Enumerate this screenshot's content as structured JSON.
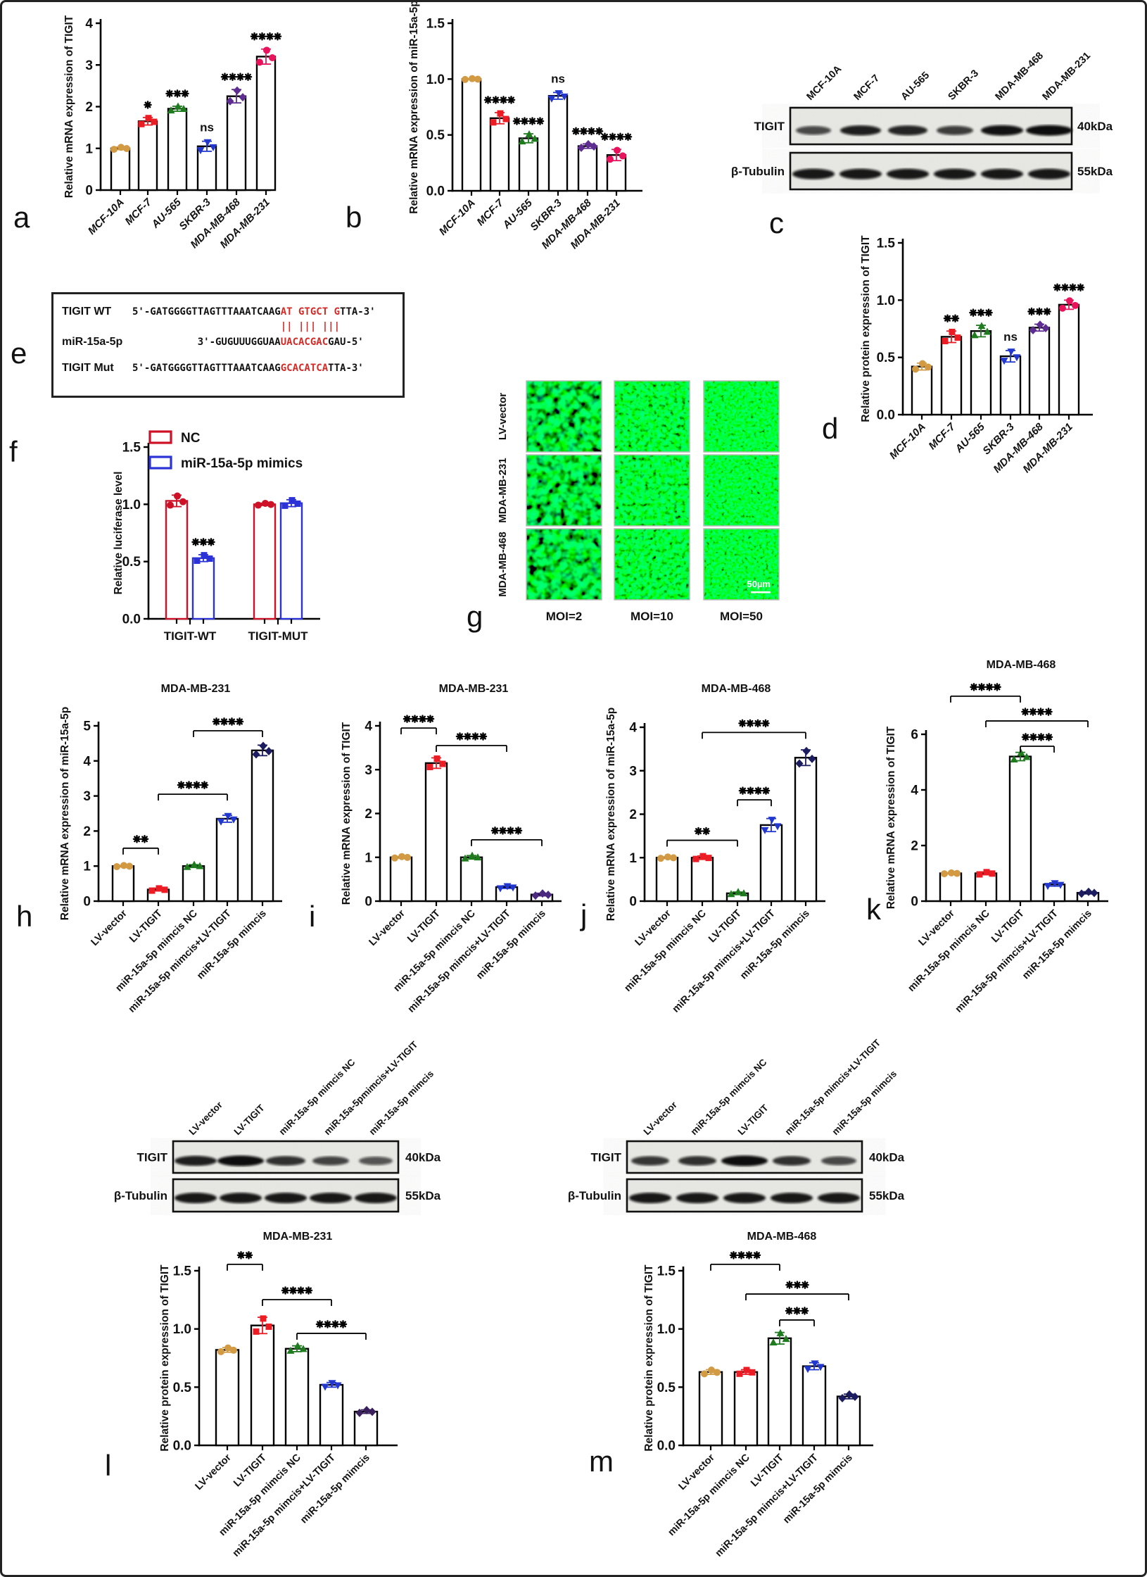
{
  "panel_letters": {
    "a": "a",
    "b": "b",
    "c": "c",
    "d": "d",
    "e": "e",
    "f": "f",
    "g": "g",
    "h": "h",
    "i": "i",
    "j": "j",
    "k": "k",
    "l": "l",
    "m": "m"
  },
  "colors": {
    "orange": "#D29A43",
    "red": "#EC1C24",
    "green": "#1E7B1E",
    "blue": "#2137CE",
    "purple": "#5E2D91",
    "navy": "#1C1C60",
    "crimson": "#E8135C",
    "violet": "#4B2981",
    "darkpurple": "#3A1F5D",
    "legend_red": "#CE1126",
    "legend_blue": "#2B32D6",
    "seq_red": "#D42B27"
  },
  "charts": {
    "a": {
      "type": "bar",
      "ylabel": "Relative mRNA expression of TIGIT",
      "ymax": 4,
      "yticks": [
        {
          "v": 0,
          "t": "0"
        },
        {
          "v": 1,
          "t": "1"
        },
        {
          "v": 2,
          "t": "2"
        },
        {
          "v": 3,
          "t": "3"
        },
        {
          "v": 4,
          "t": "4"
        }
      ],
      "categories": [
        "MCF-10A",
        "MCF-7",
        "AU-565",
        "SKBR-3",
        "MDA-MB-468",
        "MDA-MB-231"
      ],
      "values": [
        1.0,
        1.65,
        1.95,
        1.05,
        2.25,
        3.2
      ],
      "errors": [
        0.03,
        0.09,
        0.06,
        0.12,
        0.16,
        0.18
      ],
      "sig": [
        "",
        "*",
        "***",
        "ns",
        "****",
        "****"
      ],
      "points": [
        {
          "shape": "circle",
          "color": "#D29A43"
        },
        {
          "shape": "square",
          "color": "#EC1C24"
        },
        {
          "shape": "triangle",
          "color": "#1E7B1E"
        },
        {
          "shape": "tridown",
          "color": "#2137CE"
        },
        {
          "shape": "diamond",
          "color": "#5E2D91"
        },
        {
          "shape": "circle",
          "color": "#E8135C"
        }
      ]
    },
    "b": {
      "type": "bar",
      "ylabel": "Relative mRNA expression of miR-15a-5p",
      "ymax": 1.5,
      "yticks": [
        {
          "v": 0,
          "t": "0.0"
        },
        {
          "v": 0.5,
          "t": "0.5"
        },
        {
          "v": 1,
          "t": "1.0"
        },
        {
          "v": 1.5,
          "t": "1.5"
        }
      ],
      "categories": [
        "MCF-10A",
        "MCF-7",
        "AU-565",
        "SKBR-3",
        "MDA-MB-468",
        "MDA-MB-231"
      ],
      "values": [
        1.0,
        0.65,
        0.47,
        0.85,
        0.4,
        0.32
      ],
      "errors": [
        0.005,
        0.05,
        0.04,
        0.03,
        0.02,
        0.05
      ],
      "sig": [
        "",
        "****",
        "****",
        "ns",
        "****",
        "****"
      ],
      "points": [
        {
          "shape": "circle",
          "color": "#D29A43"
        },
        {
          "shape": "square",
          "color": "#EC1C24"
        },
        {
          "shape": "triangle",
          "color": "#1E7B1E"
        },
        {
          "shape": "tridown",
          "color": "#2137CE"
        },
        {
          "shape": "diamond",
          "color": "#5E2D91"
        },
        {
          "shape": "circle",
          "color": "#E8135C"
        }
      ]
    },
    "d": {
      "type": "bar",
      "ylabel": "Relative protein expression of TIGIT",
      "ymax": 1.5,
      "yticks": [
        {
          "v": 0,
          "t": "0.0"
        },
        {
          "v": 0.5,
          "t": "0.5"
        },
        {
          "v": 1,
          "t": "1.0"
        },
        {
          "v": 1.5,
          "t": "1.5"
        }
      ],
      "categories": [
        "MCF-10A",
        "MCF-7",
        "AU-565",
        "SKBR-3",
        "MDA-MB-468",
        "MDA-MB-231"
      ],
      "values": [
        0.42,
        0.68,
        0.73,
        0.51,
        0.76,
        0.96
      ],
      "errors": [
        0.03,
        0.05,
        0.05,
        0.05,
        0.03,
        0.04
      ],
      "sig": [
        "",
        "**",
        "***",
        "ns",
        "***",
        "****"
      ],
      "points": [
        {
          "shape": "circle",
          "color": "#D29A43"
        },
        {
          "shape": "square",
          "color": "#EC1C24"
        },
        {
          "shape": "triangle",
          "color": "#1E7B1E"
        },
        {
          "shape": "tridown",
          "color": "#2137CE"
        },
        {
          "shape": "diamond",
          "color": "#5E2D91"
        },
        {
          "shape": "circle",
          "color": "#E8135C"
        }
      ]
    },
    "f": {
      "type": "grouped-bar",
      "ylabel": "Relative luciferase level",
      "ymax": 1.5,
      "yticks": [
        {
          "v": 0,
          "t": "0.0"
        },
        {
          "v": 0.5,
          "t": "0.5"
        },
        {
          "v": 1,
          "t": "1.0"
        },
        {
          "v": 1.5,
          "t": "1.5"
        }
      ],
      "categories": [
        "TIGIT-WT",
        "TIGIT-MUT"
      ],
      "values": [
        1.03,
        0.53,
        1.0,
        1.01
      ],
      "errors": [
        0.05,
        0.03,
        0.01,
        0.03
      ],
      "sig": [
        "",
        "***",
        "",
        ""
      ],
      "bar_colors": [
        "#CE1126",
        "#2B32D6",
        "#CE1126",
        "#2B32D6"
      ],
      "points": [
        {
          "shape": "circle",
          "color": "#CE1126"
        },
        {
          "shape": "square",
          "color": "#2B32D6"
        },
        {
          "shape": "circle",
          "color": "#CE1126"
        },
        {
          "shape": "square",
          "color": "#2B32D6"
        }
      ],
      "legend": [
        {
          "label": "NC",
          "color": "#CE1126"
        },
        {
          "label": "miR-15a-5p mimics",
          "color": "#2B32D6"
        }
      ]
    },
    "h": {
      "type": "bar",
      "title": "MDA-MB-231",
      "ylabel": "Relative mRNA expression of miR-15a-5p",
      "ymax": 5,
      "yticks": [
        {
          "v": 0,
          "t": "0"
        },
        {
          "v": 1,
          "t": "1"
        },
        {
          "v": 2,
          "t": "2"
        },
        {
          "v": 3,
          "t": "3"
        },
        {
          "v": 4,
          "t": "4"
        },
        {
          "v": 5,
          "t": "5"
        }
      ],
      "categories": [
        "LV-vector",
        "LV-TIGIT",
        "miR-15a-5p mimcis NC",
        "miR-15a-5p mimcis+LV-TIGIT",
        "miR-15a-5p mimcis"
      ],
      "values": [
        1.0,
        0.33,
        1.0,
        2.35,
        4.3
      ],
      "errors": [
        0.02,
        0.04,
        0.04,
        0.1,
        0.15
      ],
      "points": [
        {
          "shape": "circle",
          "color": "#D29A43"
        },
        {
          "shape": "square",
          "color": "#EC1C24"
        },
        {
          "shape": "triangle",
          "color": "#1E7B1E"
        },
        {
          "shape": "tridown",
          "color": "#2137CE"
        },
        {
          "shape": "diamond",
          "color": "#1C1C60"
        }
      ],
      "brackets": [
        {
          "i1": 0,
          "i2": 1,
          "label": "**",
          "y": 1.51
        },
        {
          "i1": 1,
          "i2": 3,
          "label": "****",
          "y": 3.05
        },
        {
          "i1": 2,
          "i2": 4,
          "label": "****",
          "y": 4.86
        }
      ]
    },
    "i": {
      "type": "bar",
      "title": "MDA-MB-231",
      "ylabel": "Relative mRNA expression of TIGIT",
      "ymax": 4,
      "yticks": [
        {
          "v": 0,
          "t": "0"
        },
        {
          "v": 1,
          "t": "1"
        },
        {
          "v": 2,
          "t": "2"
        },
        {
          "v": 3,
          "t": "3"
        },
        {
          "v": 4,
          "t": "4"
        }
      ],
      "categories": [
        "LV-vector",
        "LV-TIGIT",
        "miR-15a-5p mimcis NC",
        "miR-15a-5p mimcis+LV-TIGIT",
        "miR-15a-5p mimcis"
      ],
      "values": [
        1.0,
        3.15,
        1.0,
        0.32,
        0.15
      ],
      "errors": [
        0.02,
        0.12,
        0.04,
        0.03,
        0.03
      ],
      "points": [
        {
          "shape": "circle",
          "color": "#D29A43"
        },
        {
          "shape": "square",
          "color": "#EC1C24"
        },
        {
          "shape": "triangle",
          "color": "#1E7B1E"
        },
        {
          "shape": "tridown",
          "color": "#2137CE"
        },
        {
          "shape": "diamond",
          "color": "#4B2981"
        }
      ],
      "brackets": [
        {
          "i1": 0,
          "i2": 1,
          "label": "****",
          "y": 3.95
        },
        {
          "i1": 1,
          "i2": 3,
          "label": "****",
          "y": 3.55
        },
        {
          "i1": 2,
          "i2": 4,
          "label": "****",
          "y": 1.4
        }
      ]
    },
    "j": {
      "type": "bar",
      "title": "MDA-MB-468",
      "ylabel": "Relative mRNA expression of miR-15a-5p",
      "ymax": 4,
      "yticks": [
        {
          "v": 0,
          "t": "0"
        },
        {
          "v": 1,
          "t": "1"
        },
        {
          "v": 2,
          "t": "2"
        },
        {
          "v": 3,
          "t": "3"
        },
        {
          "v": 4,
          "t": "4"
        }
      ],
      "categories": [
        "LV-vector",
        "miR-15a-5p mimcis NC",
        "LV-TIGIT",
        "miR-15a-5p mimcis+LV-TIGIT",
        "miR-15a-5p mimcis"
      ],
      "values": [
        1.0,
        1.0,
        0.18,
        1.75,
        3.3
      ],
      "errors": [
        0.02,
        0.04,
        0.03,
        0.15,
        0.18
      ],
      "points": [
        {
          "shape": "circle",
          "color": "#D29A43"
        },
        {
          "shape": "square",
          "color": "#EC1C24"
        },
        {
          "shape": "triangle",
          "color": "#1E7B1E"
        },
        {
          "shape": "tridown",
          "color": "#2137CE"
        },
        {
          "shape": "diamond",
          "color": "#1C1C60"
        }
      ],
      "brackets": [
        {
          "i1": 0,
          "i2": 2,
          "label": "**",
          "y": 1.4
        },
        {
          "i1": 2,
          "i2": 3,
          "label": "****",
          "y": 2.33
        },
        {
          "i1": 1,
          "i2": 4,
          "label": "****",
          "y": 3.88
        }
      ]
    },
    "k": {
      "type": "bar",
      "title": "MDA-MB-468",
      "ylabel": "Relative mRNA expression of TIGIT",
      "ymax": 6,
      "yticks": [
        {
          "v": 0,
          "t": "0"
        },
        {
          "v": 2,
          "t": "2"
        },
        {
          "v": 4,
          "t": "4"
        },
        {
          "v": 6,
          "t": "6"
        }
      ],
      "categories": [
        "LV-vector",
        "miR-15a-5p mimcis NC",
        "LV-TIGIT",
        "miR-15a-5p mimcis+LV-TIGIT",
        "miR-15a-5p mimcis"
      ],
      "values": [
        1.0,
        1.0,
        5.2,
        0.6,
        0.3
      ],
      "errors": [
        0.02,
        0.05,
        0.15,
        0.06,
        0.04
      ],
      "points": [
        {
          "shape": "circle",
          "color": "#D29A43"
        },
        {
          "shape": "square",
          "color": "#EC1C24"
        },
        {
          "shape": "triangle",
          "color": "#1E7B1E"
        },
        {
          "shape": "tridown",
          "color": "#2137CE"
        },
        {
          "shape": "diamond",
          "color": "#1C1C60"
        }
      ],
      "brackets": [
        {
          "i1": 0,
          "i2": 2,
          "label": "****",
          "y": 7.37
        },
        {
          "i1": 1,
          "i2": 4,
          "label": "****",
          "y": 6.48
        },
        {
          "i1": 2,
          "i2": 3,
          "label": "****",
          "y": 5.57
        }
      ]
    },
    "l": {
      "type": "bar",
      "title": "MDA-MB-231",
      "ylabel": "Relative protein expression of TIGIT",
      "ymax": 1.5,
      "yticks": [
        {
          "v": 0,
          "t": "0.0"
        },
        {
          "v": 0.5,
          "t": "0.5"
        },
        {
          "v": 1,
          "t": "1.0"
        },
        {
          "v": 1.5,
          "t": "1.5"
        }
      ],
      "categories": [
        "LV-vector",
        "LV-TIGIT",
        "miR-15a-5p mimcis NC",
        "miR-15a-5p mimcis+LV-TIGIT",
        "miR-15a-5p mimcis"
      ],
      "values": [
        0.82,
        1.03,
        0.83,
        0.52,
        0.29
      ],
      "errors": [
        0.02,
        0.07,
        0.025,
        0.02,
        0.015
      ],
      "points": [
        {
          "shape": "circle",
          "color": "#D29A43"
        },
        {
          "shape": "square",
          "color": "#EC1C24"
        },
        {
          "shape": "triangle",
          "color": "#1E7B1E"
        },
        {
          "shape": "tridown",
          "color": "#2137CE"
        },
        {
          "shape": "diamond",
          "color": "#3A1F5D"
        }
      ],
      "brackets": [
        {
          "i1": 0,
          "i2": 1,
          "label": "**",
          "y": 1.555
        },
        {
          "i1": 1,
          "i2": 3,
          "label": "****",
          "y": 1.252
        },
        {
          "i1": 2,
          "i2": 4,
          "label": "****",
          "y": 0.962
        }
      ]
    },
    "m": {
      "type": "bar",
      "title": "MDA-MB-468",
      "ylabel": "Relative protein expression of TIGIT",
      "ymax": 1.5,
      "yticks": [
        {
          "v": 0,
          "t": "0.0"
        },
        {
          "v": 0.5,
          "t": "0.5"
        },
        {
          "v": 1,
          "t": "1.0"
        },
        {
          "v": 1.5,
          "t": "1.5"
        }
      ],
      "categories": [
        "LV-vector",
        "miR-15a-5p mimcis NC",
        "LV-TIGIT",
        "miR-15a-5p mimcis+LV-TIGIT",
        "miR-15a-5p mimcis"
      ],
      "values": [
        0.63,
        0.63,
        0.92,
        0.68,
        0.42
      ],
      "errors": [
        0.02,
        0.02,
        0.05,
        0.03,
        0.02
      ],
      "points": [
        {
          "shape": "circle",
          "color": "#D29A43"
        },
        {
          "shape": "square",
          "color": "#EC1C24"
        },
        {
          "shape": "triangle",
          "color": "#1E7B1E"
        },
        {
          "shape": "tridown",
          "color": "#2137CE"
        },
        {
          "shape": "diamond",
          "color": "#1C1C60"
        }
      ],
      "brackets": [
        {
          "i1": 0,
          "i2": 2,
          "label": "****",
          "y": 1.555
        },
        {
          "i1": 1,
          "i2": 4,
          "label": "***",
          "y": 1.3
        },
        {
          "i1": 2,
          "i2": 3,
          "label": "***",
          "y": 1.077
        }
      ]
    }
  },
  "blots": {
    "c": {
      "protein": "TIGIT",
      "loading": "β-Tubulin",
      "mw_top": "40kDa",
      "mw_bottom": "55kDa",
      "lanes": [
        "MCF-10A",
        "MCF-7",
        "AU-565",
        "SKBR-3",
        "MDA-MB-468",
        "MDA-MB-231"
      ],
      "top_band_intensity": [
        0.5,
        0.85,
        0.8,
        0.6,
        0.95,
        1.0
      ],
      "top_band_width": [
        25,
        29,
        28,
        26,
        30,
        33
      ],
      "bottom_band_intensity": [
        1,
        1,
        1,
        1,
        1,
        1
      ]
    },
    "l": {
      "protein": "TIGIT",
      "loading": "β-Tubulin",
      "mw_top": "40kDa",
      "mw_bottom": "55kDa",
      "lanes": [
        "LV-vector",
        "LV-TIGIT",
        "miR-15a-5p mimcis NC",
        "miR-15a-5pmimcis+LV-TIGIT",
        "miR-15a-5p mimcis"
      ],
      "top_band_intensity": [
        0.85,
        1.0,
        0.7,
        0.55,
        0.4
      ],
      "top_band_width": [
        30,
        33,
        28,
        26,
        24
      ],
      "bottom_band_intensity": [
        1,
        1,
        1,
        1,
        1
      ]
    },
    "m": {
      "protein": "TIGIT",
      "loading": "β-Tubulin",
      "mw_top": "40kDa",
      "mw_bottom": "55kDa",
      "lanes": [
        "LV-vector",
        "miR-15a-5p mimcis NC",
        "LV-TIGIT",
        "miR-15a-5p mimcis+LV-TIGIT",
        "miR-15a-5p mimcis"
      ],
      "top_band_intensity": [
        0.65,
        0.7,
        1.0,
        0.7,
        0.5
      ],
      "top_band_width": [
        27,
        27,
        33,
        27,
        25
      ],
      "bottom_band_intensity": [
        1,
        1,
        1,
        1,
        1
      ]
    }
  },
  "fluorescence": {
    "rows": [
      "LV-vector",
      "MDA-MB-231",
      "MDA-MB-468"
    ],
    "cols": [
      "MOI=2",
      "MOI=10",
      "MOI=50"
    ],
    "scale_bar": "50µm"
  },
  "sequence_panel": {
    "rows": [
      {
        "label": "TIGIT WT",
        "cls": "r1",
        "segments": [
          {
            "t": "5'-GATGGGGTTAGTTTAAATCAAG",
            "red": false
          },
          {
            "t": "AT GTGCT G",
            "red": true
          },
          {
            "t": "TTA-3'",
            "red": false
          }
        ]
      },
      {
        "label": "",
        "cls": "r2",
        "segments": [
          {
            "t": "                         ",
            "red": false
          },
          {
            "t": "|| ||| |||",
            "red": true
          }
        ]
      },
      {
        "label": "miR-15a-5p",
        "cls": "r3",
        "segments": [
          {
            "t": "           3'-GUGUUUGGUAA",
            "red": false
          },
          {
            "t": "UACACGAC",
            "red": true
          },
          {
            "t": "GAU-5'",
            "red": false
          }
        ]
      },
      {
        "label": "TIGIT Mut",
        "cls": "r4",
        "segments": [
          {
            "t": "5'-GATGGGGTTAGTTTAAATCAAG",
            "red": false
          },
          {
            "t": "GCACATCA",
            "red": true
          },
          {
            "t": "TTA-3'",
            "red": false
          }
        ]
      }
    ]
  }
}
